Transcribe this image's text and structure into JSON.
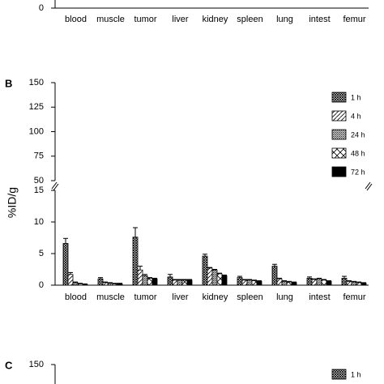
{
  "chart_data": [
    {
      "type": "bar",
      "yticks": [
        0
      ],
      "categories": [
        "blood",
        "muscle",
        "tumor",
        "liver",
        "kidney",
        "spleen",
        "lung",
        "intest",
        "femur"
      ]
    },
    {
      "type": "bar",
      "label": "B",
      "y_label": "%ID/g",
      "categories": [
        "blood",
        "muscle",
        "tumor",
        "liver",
        "kidney",
        "spleen",
        "lung",
        "intest",
        "femur"
      ],
      "ylim": [
        0,
        150
      ],
      "y_break": [
        15,
        50
      ],
      "yticks": [
        0,
        5,
        10,
        15,
        50,
        75,
        100,
        125,
        150
      ],
      "legend": "upper right",
      "series": [
        {
          "name": "1 h",
          "pattern": "crosshatch",
          "values": [
            6.6,
            1.0,
            7.6,
            1.3,
            4.6,
            1.2,
            3.0,
            1.1,
            1.1
          ],
          "errors": [
            0.8,
            0.2,
            1.5,
            0.4,
            0.3,
            0.2,
            0.3,
            0.2,
            0.3
          ]
        },
        {
          "name": "4 h",
          "pattern": "sparse-diagonal",
          "values": [
            1.7,
            0.4,
            2.4,
            0.8,
            2.7,
            0.8,
            1.0,
            0.9,
            0.6
          ],
          "errors": [
            0.3,
            0.1,
            0.6,
            0.1,
            0.1,
            0.1,
            0.1,
            0.1,
            0.1
          ]
        },
        {
          "name": "24 h",
          "pattern": "dense-diagonal",
          "values": [
            0.4,
            0.3,
            1.5,
            0.8,
            2.4,
            0.8,
            0.6,
            1.0,
            0.5
          ],
          "errors": [
            0.1,
            0.1,
            0.2,
            0.1,
            0.1,
            0.1,
            0.1,
            0.1,
            0.1
          ]
        },
        {
          "name": "48 h",
          "pattern": "x-box",
          "values": [
            0.2,
            0.2,
            1.1,
            0.8,
            1.8,
            0.7,
            0.5,
            0.8,
            0.4
          ],
          "errors": [
            0.1,
            0.1,
            0.1,
            0.1,
            0.1,
            0.1,
            0.1,
            0.1,
            0.1
          ]
        },
        {
          "name": "72 h",
          "pattern": "solid",
          "values": [
            0.1,
            0.2,
            1.0,
            0.8,
            1.5,
            0.6,
            0.4,
            0.6,
            0.3
          ],
          "errors": [
            0.1,
            0.1,
            0.1,
            0.1,
            0.1,
            0.1,
            0.1,
            0.1,
            0.1
          ]
        }
      ]
    },
    {
      "type": "bar",
      "label": "C",
      "yticks": [
        150
      ],
      "series": [
        {
          "name": "1 h",
          "pattern": "crosshatch"
        }
      ]
    }
  ]
}
